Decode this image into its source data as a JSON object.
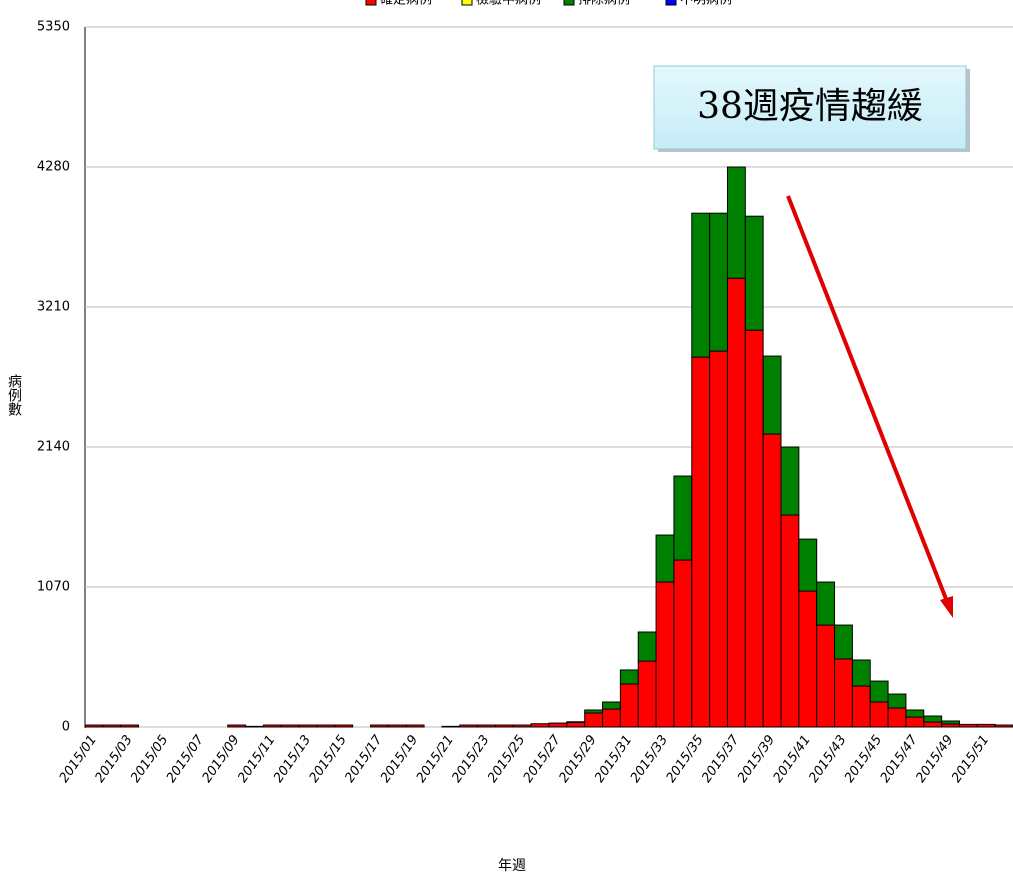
{
  "chart_data": {
    "type": "stacked_bar",
    "categories": [
      "2015/01",
      null,
      "2015/03",
      null,
      "2015/05",
      null,
      "2015/07",
      null,
      "2015/09",
      null,
      "2015/11",
      null,
      "2015/13",
      null,
      "2015/15",
      null,
      "2015/17",
      null,
      "2015/19",
      null,
      "2015/21",
      null,
      "2015/23",
      null,
      "2015/25",
      null,
      "2015/27",
      null,
      "2015/29",
      null,
      "2015/31",
      null,
      "2015/33",
      null,
      "2015/35",
      null,
      "2015/37",
      null,
      "2015/39",
      null,
      "2015/41",
      null,
      "2015/43",
      null,
      "2015/45",
      null,
      "2015/47",
      null,
      "2015/49",
      null,
      "2015/51",
      null
    ],
    "series": [
      {
        "name": "確定病例",
        "color": "#ff0000",
        "values": [
          15,
          15,
          15,
          0,
          0,
          0,
          0,
          0,
          15,
          5,
          15,
          15,
          15,
          15,
          15,
          0,
          15,
          15,
          15,
          0,
          5,
          15,
          15,
          15,
          15,
          25,
          30,
          35,
          107,
          137,
          329,
          504,
          1108,
          1276,
          2827,
          2873,
          3430,
          3033,
          2239,
          1620,
          1039,
          779,
          520,
          313,
          191,
          145,
          76,
          38,
          23,
          20,
          20,
          15
        ]
      },
      {
        "name": "檢驗中病例",
        "color": "#ffff00",
        "values": [
          0,
          0,
          0,
          0,
          0,
          0,
          0,
          0,
          0,
          0,
          0,
          0,
          0,
          0,
          0,
          0,
          0,
          0,
          0,
          0,
          0,
          0,
          0,
          0,
          0,
          0,
          0,
          0,
          0,
          0,
          0,
          0,
          0,
          0,
          0,
          0,
          0,
          0,
          0,
          0,
          0,
          0,
          0,
          0,
          0,
          0,
          0,
          0,
          0,
          0,
          0,
          0
        ]
      },
      {
        "name": "排除病例",
        "color": "#008000",
        "values": [
          0,
          0,
          0,
          0,
          0,
          0,
          0,
          0,
          0,
          0,
          0,
          0,
          0,
          0,
          0,
          0,
          0,
          0,
          0,
          0,
          0,
          0,
          0,
          0,
          0,
          0,
          0,
          5,
          23,
          54,
          107,
          222,
          359,
          642,
          1100,
          1054,
          850,
          871,
          596,
          520,
          397,
          329,
          259,
          199,
          160,
          107,
          54,
          46,
          23,
          0,
          0,
          0
        ]
      },
      {
        "name": "不明病例",
        "color": "#0000ff",
        "values": [
          0,
          0,
          0,
          0,
          0,
          0,
          0,
          0,
          0,
          0,
          0,
          0,
          0,
          0,
          0,
          0,
          0,
          0,
          0,
          0,
          0,
          0,
          0,
          0,
          0,
          0,
          0,
          0,
          0,
          0,
          0,
          0,
          0,
          0,
          0,
          0,
          0,
          0,
          0,
          0,
          0,
          0,
          0,
          0,
          0,
          0,
          0,
          0,
          0,
          0,
          0,
          0
        ]
      }
    ],
    "ylim": [
      0,
      5350
    ],
    "yticks": [
      0,
      1070,
      2140,
      3210,
      4280,
      5350
    ],
    "grid": true,
    "xlabel": "年週",
    "ylabel": "病例數",
    "annotation": "38週疫情趨緩"
  }
}
